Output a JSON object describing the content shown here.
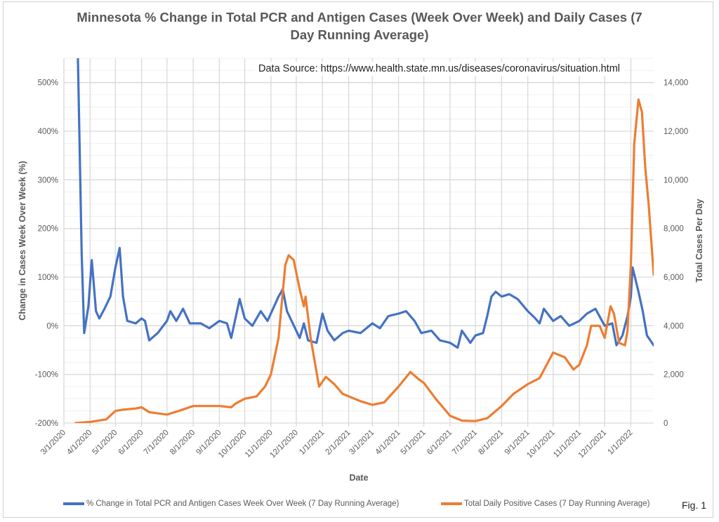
{
  "figure_label": "Fig. 1",
  "annotation": "Data Source: https://www.health.state.mn.us/diseases/coronavirus/situation.html",
  "chart_data": {
    "type": "line",
    "title": "Minnesota % Change in Total PCR and Antigen Cases (Week Over Week) and Daily Cases (7 Day Running Average)",
    "xlabel": "Date",
    "ylabel": "Change in Cases Week Over Week (%)",
    "y2label": "Total Cases Per Day",
    "xlim": [
      "2020-03-01",
      "2022-01-28"
    ],
    "ylim": [
      -200,
      550
    ],
    "y2lim": [
      0,
      15000
    ],
    "grid": true,
    "legend_position": "bottom",
    "x_tick_labels": [
      "3/1/2020",
      "4/1/2020",
      "5/1/2020",
      "6/1/2020",
      "7/1/2020",
      "8/1/2020",
      "9/1/2020",
      "10/1/2020",
      "11/1/2020",
      "12/1/2020",
      "1/1/2021",
      "2/1/2021",
      "3/1/2021",
      "4/1/2021",
      "5/1/2021",
      "6/1/2021",
      "7/1/2021",
      "8/1/2021",
      "9/1/2021",
      "10/1/2021",
      "11/1/2021",
      "12/1/2021",
      "1/1/2022"
    ],
    "y_tick_labels": [
      "500%",
      "400%",
      "300%",
      "200%",
      "100%",
      "0%",
      "-100%",
      "-200%"
    ],
    "y_ticks": [
      500,
      400,
      300,
      200,
      100,
      0,
      -100,
      -200
    ],
    "y2_tick_labels": [
      "14,000",
      "12,000",
      "10,000",
      "8,000",
      "6,000",
      "4,000",
      "2,000",
      "0"
    ],
    "y2_ticks": [
      14000,
      12000,
      10000,
      8000,
      6000,
      4000,
      2000,
      0
    ],
    "series": [
      {
        "name": "% Change in Total PCR and Antigen Cases Week Over Week (7 Day Running Average)",
        "axis": "left",
        "color": "#4472C4",
        "points": [
          [
            "2020-03-17",
            600
          ],
          [
            "2020-03-22",
            150
          ],
          [
            "2020-03-25",
            -15
          ],
          [
            "2020-03-30",
            40
          ],
          [
            "2020-04-03",
            135
          ],
          [
            "2020-04-08",
            30
          ],
          [
            "2020-04-12",
            15
          ],
          [
            "2020-04-18",
            35
          ],
          [
            "2020-04-25",
            60
          ],
          [
            "2020-05-01",
            120
          ],
          [
            "2020-05-06",
            160
          ],
          [
            "2020-05-10",
            60
          ],
          [
            "2020-05-15",
            10
          ],
          [
            "2020-05-25",
            5
          ],
          [
            "2020-06-01",
            15
          ],
          [
            "2020-06-05",
            10
          ],
          [
            "2020-06-10",
            -30
          ],
          [
            "2020-06-20",
            -15
          ],
          [
            "2020-07-01",
            10
          ],
          [
            "2020-07-05",
            30
          ],
          [
            "2020-07-12",
            10
          ],
          [
            "2020-07-20",
            35
          ],
          [
            "2020-07-28",
            5
          ],
          [
            "2020-08-10",
            5
          ],
          [
            "2020-08-20",
            -5
          ],
          [
            "2020-09-01",
            10
          ],
          [
            "2020-09-10",
            5
          ],
          [
            "2020-09-15",
            -25
          ],
          [
            "2020-09-25",
            55
          ],
          [
            "2020-10-01",
            15
          ],
          [
            "2020-10-10",
            0
          ],
          [
            "2020-10-20",
            30
          ],
          [
            "2020-10-28",
            10
          ],
          [
            "2020-11-10",
            60
          ],
          [
            "2020-11-15",
            75
          ],
          [
            "2020-11-20",
            30
          ],
          [
            "2020-12-01",
            -10
          ],
          [
            "2020-12-05",
            -25
          ],
          [
            "2020-12-10",
            5
          ],
          [
            "2020-12-15",
            -30
          ],
          [
            "2020-12-25",
            -35
          ],
          [
            "2021-01-01",
            25
          ],
          [
            "2021-01-07",
            -10
          ],
          [
            "2021-01-15",
            -30
          ],
          [
            "2021-01-25",
            -15
          ],
          [
            "2021-02-01",
            -10
          ],
          [
            "2021-02-15",
            -15
          ],
          [
            "2021-03-01",
            5
          ],
          [
            "2021-03-10",
            -5
          ],
          [
            "2021-03-20",
            20
          ],
          [
            "2021-04-01",
            25
          ],
          [
            "2021-04-10",
            30
          ],
          [
            "2021-04-20",
            10
          ],
          [
            "2021-04-28",
            -15
          ],
          [
            "2021-05-10",
            -10
          ],
          [
            "2021-05-20",
            -30
          ],
          [
            "2021-06-01",
            -35
          ],
          [
            "2021-06-10",
            -45
          ],
          [
            "2021-06-15",
            -10
          ],
          [
            "2021-06-25",
            -35
          ],
          [
            "2021-07-01",
            -20
          ],
          [
            "2021-07-10",
            -15
          ],
          [
            "2021-07-15",
            20
          ],
          [
            "2021-07-20",
            60
          ],
          [
            "2021-07-25",
            70
          ],
          [
            "2021-08-01",
            60
          ],
          [
            "2021-08-10",
            65
          ],
          [
            "2021-08-20",
            55
          ],
          [
            "2021-09-01",
            30
          ],
          [
            "2021-09-10",
            15
          ],
          [
            "2021-09-15",
            5
          ],
          [
            "2021-09-20",
            35
          ],
          [
            "2021-10-01",
            10
          ],
          [
            "2021-10-10",
            20
          ],
          [
            "2021-10-20",
            0
          ],
          [
            "2021-11-01",
            10
          ],
          [
            "2021-11-10",
            25
          ],
          [
            "2021-11-20",
            35
          ],
          [
            "2021-12-01",
            0
          ],
          [
            "2021-12-10",
            5
          ],
          [
            "2021-12-15",
            -40
          ],
          [
            "2021-12-22",
            -20
          ],
          [
            "2021-12-28",
            20
          ],
          [
            "2022-01-01",
            60
          ],
          [
            "2022-01-03",
            120
          ],
          [
            "2022-01-10",
            70
          ],
          [
            "2022-01-15",
            30
          ],
          [
            "2022-01-20",
            -20
          ],
          [
            "2022-01-28",
            -40
          ]
        ]
      },
      {
        "name": "Total Daily Positive Cases (7 Day Running Average)",
        "axis": "right",
        "color": "#ED7D31",
        "points": [
          [
            "2020-03-15",
            0
          ],
          [
            "2020-04-01",
            50
          ],
          [
            "2020-04-20",
            150
          ],
          [
            "2020-05-01",
            500
          ],
          [
            "2020-05-10",
            550
          ],
          [
            "2020-05-25",
            600
          ],
          [
            "2020-06-01",
            650
          ],
          [
            "2020-06-10",
            450
          ],
          [
            "2020-07-01",
            350
          ],
          [
            "2020-07-15",
            500
          ],
          [
            "2020-08-01",
            700
          ],
          [
            "2020-08-20",
            700
          ],
          [
            "2020-09-01",
            700
          ],
          [
            "2020-09-15",
            650
          ],
          [
            "2020-09-20",
            800
          ],
          [
            "2020-10-01",
            1000
          ],
          [
            "2020-10-15",
            1100
          ],
          [
            "2020-10-25",
            1500
          ],
          [
            "2020-11-01",
            2000
          ],
          [
            "2020-11-10",
            3500
          ],
          [
            "2020-11-18",
            6500
          ],
          [
            "2020-11-22",
            6900
          ],
          [
            "2020-11-28",
            6700
          ],
          [
            "2020-12-05",
            5500
          ],
          [
            "2020-12-10",
            4800
          ],
          [
            "2020-12-12",
            5200
          ],
          [
            "2020-12-18",
            3500
          ],
          [
            "2020-12-28",
            1500
          ],
          [
            "2021-01-05",
            1900
          ],
          [
            "2021-01-15",
            1600
          ],
          [
            "2021-01-25",
            1200
          ],
          [
            "2021-02-15",
            900
          ],
          [
            "2021-03-01",
            750
          ],
          [
            "2021-03-15",
            850
          ],
          [
            "2021-04-01",
            1500
          ],
          [
            "2021-04-15",
            2100
          ],
          [
            "2021-04-25",
            1800
          ],
          [
            "2021-05-01",
            1650
          ],
          [
            "2021-05-15",
            1000
          ],
          [
            "2021-06-01",
            300
          ],
          [
            "2021-06-15",
            100
          ],
          [
            "2021-07-01",
            80
          ],
          [
            "2021-07-15",
            200
          ],
          [
            "2021-08-01",
            700
          ],
          [
            "2021-08-15",
            1200
          ],
          [
            "2021-09-01",
            1600
          ],
          [
            "2021-09-15",
            1850
          ],
          [
            "2021-10-01",
            2900
          ],
          [
            "2021-10-15",
            2700
          ],
          [
            "2021-10-25",
            2200
          ],
          [
            "2021-11-01",
            2400
          ],
          [
            "2021-11-10",
            3200
          ],
          [
            "2021-11-15",
            4000
          ],
          [
            "2021-11-25",
            4000
          ],
          [
            "2021-12-01",
            3500
          ],
          [
            "2021-12-08",
            4800
          ],
          [
            "2021-12-12",
            4500
          ],
          [
            "2021-12-18",
            3300
          ],
          [
            "2021-12-25",
            3200
          ],
          [
            "2021-12-28",
            3800
          ],
          [
            "2022-01-01",
            6500
          ],
          [
            "2022-01-05",
            11500
          ],
          [
            "2022-01-10",
            13300
          ],
          [
            "2022-01-14",
            12800
          ],
          [
            "2022-01-18",
            10500
          ],
          [
            "2022-01-22",
            9000
          ],
          [
            "2022-01-28",
            6100
          ]
        ]
      }
    ]
  }
}
